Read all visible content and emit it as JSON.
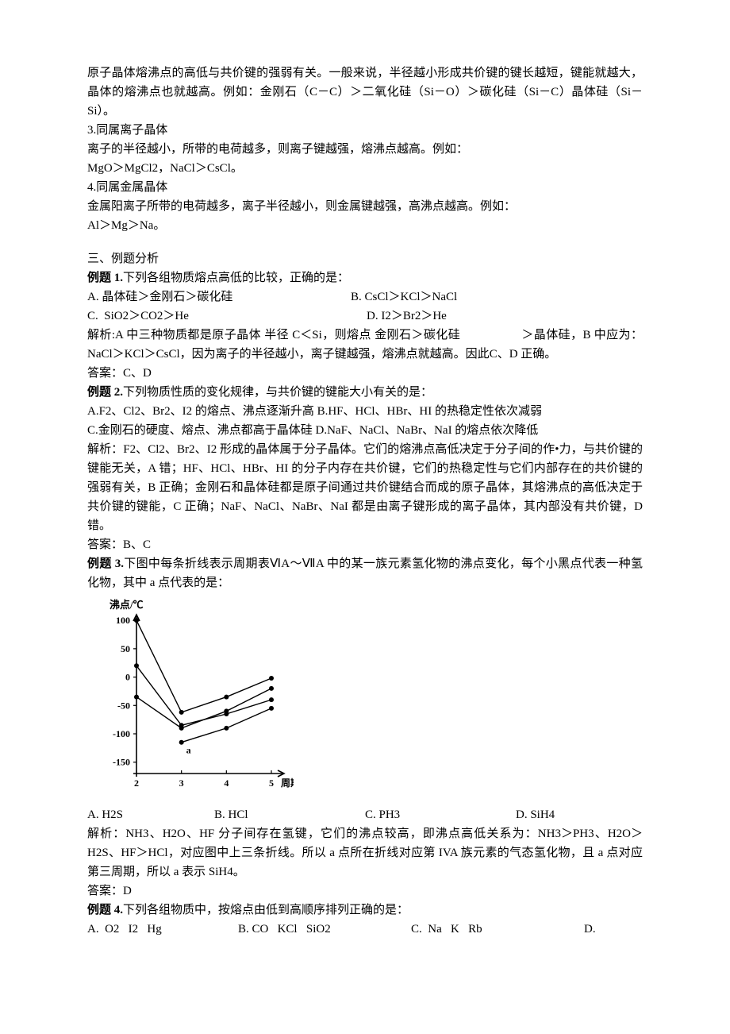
{
  "intro": {
    "p1": "原子晶体熔沸点的高低与共价键的强弱有关。一般来说，半径越小形成共价键的键长越短，键能就越大，晶体的熔沸点也就越高。例如：金刚石（C－C）＞二氧化硅（Si－O）＞碳化硅（Si－C）晶体硅（Si－Si）。",
    "h3": "3.同属离子晶体",
    "p3a": "离子的半径越小，所带的电荷越多，则离子键越强，熔沸点越高。例如：",
    "p3b": "MgO＞MgCl2，NaCl＞CsCl。",
    "h4": "4.同属金属晶体",
    "p4a": "金属阳离子所带的电荷越多，离子半径越小，则金属键越强，高沸点越高。例如：",
    "p4b": "Al＞Mg＞Na。"
  },
  "section3": {
    "title": "三、例题分析"
  },
  "ex1": {
    "title": "例题 1.",
    "stem": "下列各组物质熔点高低的比较，正确的是：",
    "optA": "A. 晶体硅＞金刚石＞碳化硅",
    "optB": "B. CsCl＞KCl＞NaCl",
    "optC": "C.  SiO2＞CO2＞He",
    "optD": "D. I2＞Br2＞He",
    "ana": "解析:A 中三种物质都是原子晶体 半径 C＜Si，则熔点 金刚石＞碳化硅　　　　　＞晶体硅，B 中应为：NaCl＞KCl＞CsCl，因为离子的半径越小，离子键越强，熔沸点就越高。因此C、D 正确。",
    "ans": "答案：C、D"
  },
  "ex2": {
    "title": "例题 2.",
    "stem": "下列物质性质的变化规律，与共价键的键能大小有关的是：",
    "line1": "A.F2、Cl2、Br2、I2 的熔点、沸点逐渐升高 B.HF、HCl、HBr、HI 的热稳定性依次减弱",
    "line2": "C.金刚石的硬度、熔点、沸点都高于晶体硅 D.NaF、NaCl、NaBr、NaI 的熔点依次降低",
    "ana": "解析：F2、Cl2、Br2、I2 形成的晶体属于分子晶体。它们的熔沸点高低决定于分子间的作•力，与共价键的键能无关，A 错；HF、HCl、HBr、HI 的分子内存在共价键，它们的热稳定性与它们内部存在的共价键的强弱有关，B 正确；金刚石和晶体硅都是原子间通过共价键结合而成的原子晶体，其熔沸点的高低决定于共价键的键能，C 正确；NaF、NaCl、NaBr、NaI 都是由离子键形成的离子晶体，其内部没有共价键，D 错。",
    "ans": "答案：B、C"
  },
  "ex3": {
    "title": "例题 3.",
    "stem": "下图中每条折线表示周期表ⅥA～ⅦA 中的某一族元素氢化物的沸点变化，每个小黑点代表一种氢化物，其中 a 点代表的是：",
    "chart": {
      "type": "line",
      "ylabel": "沸点/℃",
      "xlabel": "周期",
      "yticks": [
        100,
        50,
        0,
        -50,
        -100,
        -150
      ],
      "xticks": [
        2,
        3,
        4,
        5
      ],
      "axis_color": "#000000",
      "grid_color": "#000000",
      "line_color": "#000000",
      "point_color": "#000000",
      "background": "#ffffff",
      "label_fontsize": 13,
      "tick_fontsize": 12,
      "line_width": 1.4,
      "point_radius": 3,
      "a_label": "a",
      "series": [
        {
          "points": [
            [
              2,
              100
            ],
            [
              3,
              -62
            ],
            [
              4,
              -35
            ],
            [
              5,
              -2
            ]
          ]
        },
        {
          "points": [
            [
              2,
              20
            ],
            [
              3,
              -85
            ],
            [
              4,
              -65
            ],
            [
              5,
              -40
            ]
          ]
        },
        {
          "points": [
            [
              2,
              -35
            ],
            [
              3,
              -90
            ],
            [
              4,
              -60
            ],
            [
              5,
              -20
            ]
          ]
        },
        {
          "points": [
            [
              3,
              -115
            ],
            [
              4,
              -90
            ],
            [
              5,
              -55
            ]
          ]
        }
      ],
      "a_point": [
        3,
        -115
      ]
    },
    "optA": "A. H2S",
    "optB": "B. HCl",
    "optC": "C. PH3",
    "optD": "D. SiH4",
    "ana": "解析：NH3、H2O、HF 分子间存在氢键，它们的沸点较高，即沸点高低关系为：NH3＞PH3、H2O＞H2S、HF＞HCl，对应图中上三条折线。所以 a 点所在折线对应第 IVA 族元素的气态氢化物，且 a 点对应第三周期，所以 a 表示 SiH4。",
    "ans": "答案：D"
  },
  "ex4": {
    "title": "例题 4.",
    "stem": "下列各组物质中，按熔点由低到高顺序排列正确的是：",
    "optA": "A.  O2   I2   Hg",
    "optB": "B. CO   KCl   SiO2",
    "optC": "C.  Na   K   Rb",
    "optD": "D."
  }
}
